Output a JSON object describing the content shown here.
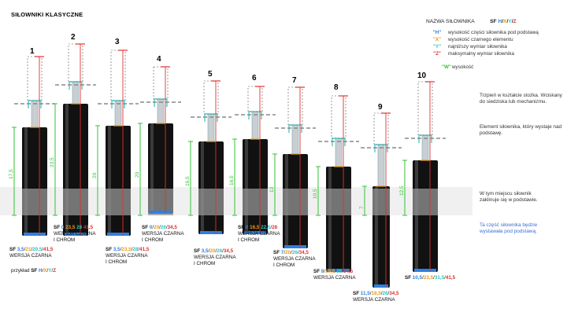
{
  "title": "SIŁOWNIKI KLASYCZNE",
  "legend": {
    "heading": "NAZWA SIŁOWNIKA",
    "code_sf": "SF",
    "code_parts": [
      "H",
      "X",
      "Y",
      "Z"
    ],
    "rows": [
      {
        "key": "\"H\"",
        "text": "wysokość części siłownika pod podstawą",
        "color": "#2f7fe0"
      },
      {
        "key": "\"X\"",
        "text": "wysokość czarnego elementu",
        "color": "#f09a18"
      },
      {
        "key": "\"Y\"",
        "text": "najniższy wymiar siłownika",
        "color": "#2ec4c0"
      },
      {
        "key": "\"Z\"",
        "text": "maksymalny wymiar siłownika",
        "color": "#e0312f"
      },
      {
        "key": "\"W\"",
        "text": "wysokość",
        "color": "#35c23a"
      }
    ]
  },
  "notes": {
    "cone": "Trzpień w kształcie stożka. Wciskany do siedziska lub mechanizmu.",
    "element": "Element siłownika, który wystaje nad podstawę.",
    "jam": "W tym miejscu siłownik zaklinuje się w podstawie.",
    "blue": "Ta część siłownika będzie wystawała pod podstawą."
  },
  "example": {
    "label": "przykład",
    "sf": "SF",
    "parts": [
      "H",
      "X",
      "Y",
      "Z"
    ]
  },
  "cylinders": [
    {
      "num": "1",
      "w": "17,5",
      "sf": [
        "3,5",
        "21",
        "29,5",
        "41,5"
      ],
      "lines": [
        "WERSJA CZARNA"
      ]
    },
    {
      "num": "2",
      "w": "23,5",
      "sf": [
        "0",
        "23,5",
        "28",
        "41,5"
      ],
      "lines": [
        "WERSJA CZARNA",
        "I CHROM"
      ]
    },
    {
      "num": "3",
      "w": "20",
      "sf": [
        "3,5",
        "23,5",
        "28",
        "41,5"
      ],
      "lines": [
        "WERSJA CZARNA",
        "I CHROM"
      ]
    },
    {
      "num": "4",
      "w": "20",
      "sf": [
        "0",
        "20",
        "26",
        "34,5"
      ],
      "lines": [
        "WERSJA CZARNA",
        "I CHROM"
      ]
    },
    {
      "num": "5",
      "w": "16,5",
      "sf": [
        "3,5",
        "20",
        "26",
        "34,5"
      ],
      "lines": [
        "WERSJA CZARNA",
        "I CHROM"
      ]
    },
    {
      "num": "6",
      "w": "16,5",
      "sf": [
        "0",
        "16,5",
        "22,5",
        "28"
      ],
      "lines": [
        "WERSJA CZARNA",
        "I CHROM"
      ]
    },
    {
      "num": "7",
      "w": "13",
      "sf": [
        "7",
        "20",
        "26",
        "34,5"
      ],
      "lines": [
        "WERSJA CZARNA",
        "I CHROM"
      ]
    },
    {
      "num": "8",
      "w": "10,5",
      "sf": [
        "9",
        "19,5",
        "25",
        "34,5"
      ],
      "lines": [
        "WERSJA CZARNA"
      ]
    },
    {
      "num": "9",
      "w": "7",
      "sf": [
        "11,5",
        "18,5",
        "26",
        "34,5"
      ],
      "lines": [
        "WERSJA CZARNA"
      ]
    },
    {
      "num": "10",
      "w": "12,5",
      "sf": [
        "10,5",
        "23,5",
        "31,5",
        "41,5"
      ],
      "lines": []
    }
  ],
  "colors": {
    "h": "#2f7fe0",
    "x": "#f09a18",
    "y": "#2ec4c0",
    "z": "#e0312f",
    "w": "#35c23a"
  }
}
